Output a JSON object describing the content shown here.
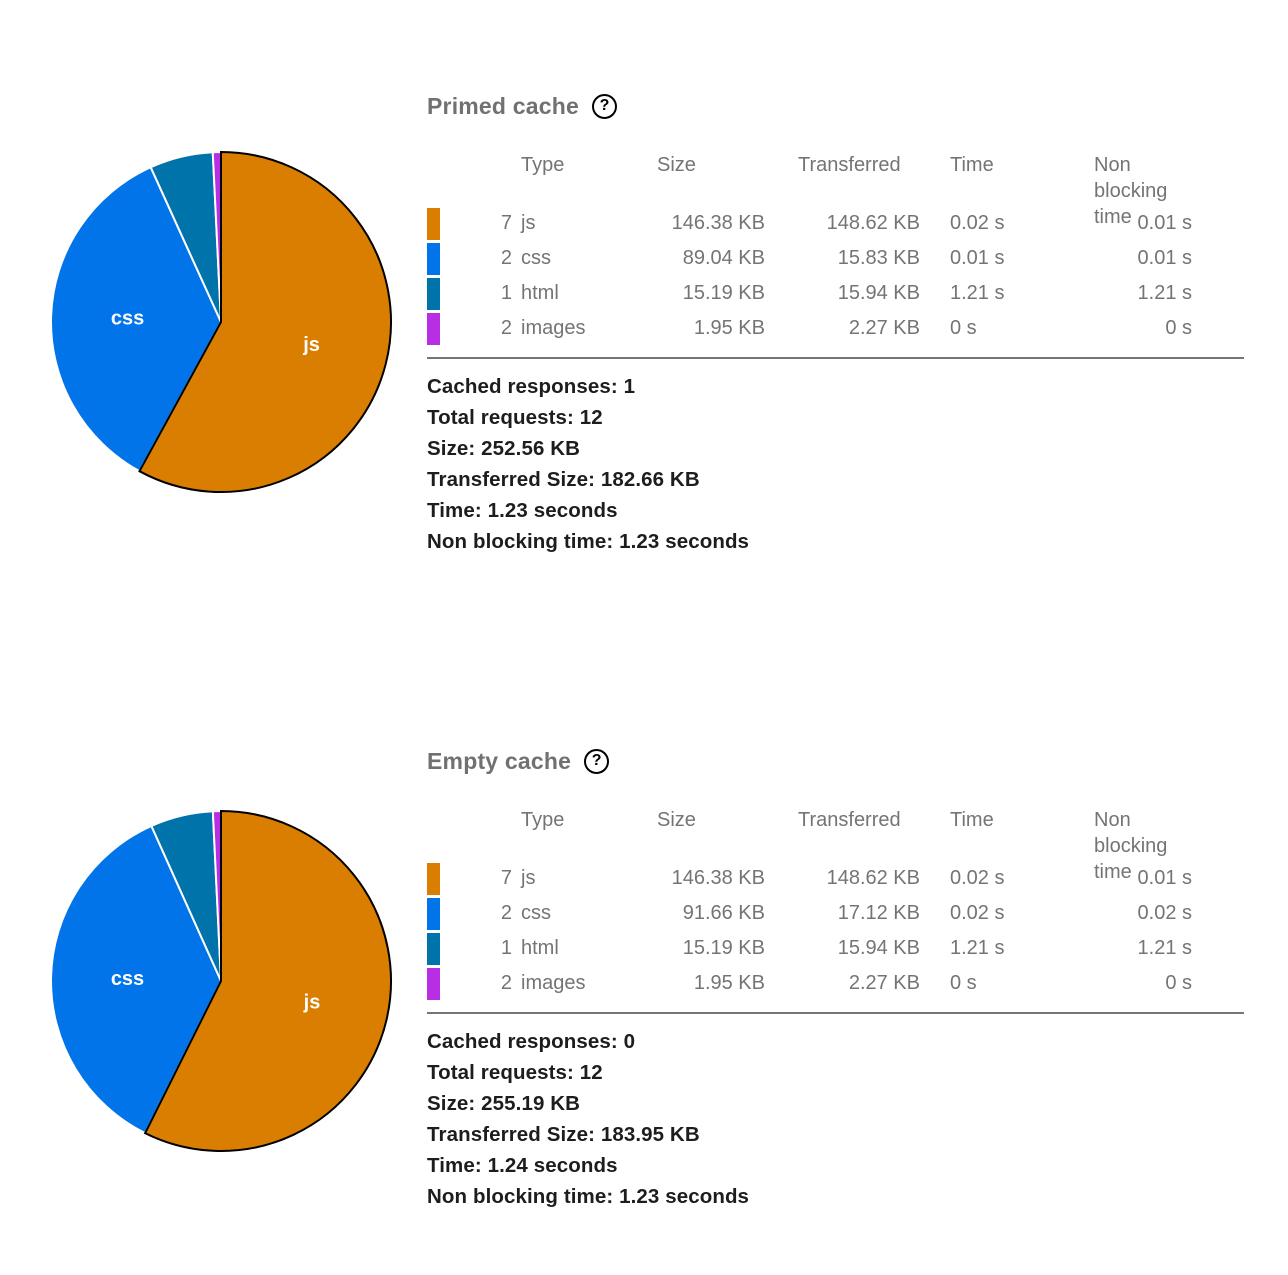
{
  "palette": {
    "js": "#d97e00",
    "css": "#0074e8",
    "html": "#0073ab",
    "images": "#b82ee5",
    "title_gray": "#717171",
    "table_gray": "#747474",
    "summary_dark": "#1d1d1f",
    "divider_gray": "#757575",
    "slice_label": "#ffffff",
    "js_slice_stroke": "#000000",
    "slice_separator": "#ffffff"
  },
  "sections": [
    {
      "title": "Primed cache",
      "help_icon": {
        "glyph": "?"
      },
      "table": {
        "headers": {
          "type": "Type",
          "size": "Size",
          "transferred": "Transferred",
          "time": "Time",
          "non_blocking_time": "Non blocking time"
        },
        "rows": [
          {
            "count": "7",
            "type": "js",
            "size": "146.38 KB",
            "transferred": "148.62 KB",
            "time": "0.02 s",
            "non_blocking_time": "0.01 s",
            "color": "#d97e00"
          },
          {
            "count": "2",
            "type": "css",
            "size": "89.04 KB",
            "transferred": "15.83 KB",
            "time": "0.01 s",
            "non_blocking_time": "0.01 s",
            "color": "#0074e8"
          },
          {
            "count": "1",
            "type": "html",
            "size": "15.19 KB",
            "transferred": "15.94 KB",
            "time": "1.21 s",
            "non_blocking_time": "1.21 s",
            "color": "#0073ab"
          },
          {
            "count": "2",
            "type": "images",
            "size": "1.95 KB",
            "transferred": "2.27 KB",
            "time": "0 s",
            "non_blocking_time": "0 s",
            "color": "#b82ee5"
          }
        ]
      },
      "summary": [
        "Cached responses: 1",
        "Total requests: 12",
        "Size: 252.56 KB",
        "Transferred Size: 182.66 KB",
        "Time: 1.23 seconds",
        "Non blocking time: 1.23 seconds"
      ]
    },
    {
      "title": "Empty cache",
      "help_icon": {
        "glyph": "?"
      },
      "table": {
        "headers": {
          "type": "Type",
          "size": "Size",
          "transferred": "Transferred",
          "time": "Time",
          "non_blocking_time": "Non blocking time"
        },
        "rows": [
          {
            "count": "7",
            "type": "js",
            "size": "146.38 KB",
            "transferred": "148.62 KB",
            "time": "0.02 s",
            "non_blocking_time": "0.01 s",
            "color": "#d97e00"
          },
          {
            "count": "2",
            "type": "css",
            "size": "91.66 KB",
            "transferred": "17.12 KB",
            "time": "0.02 s",
            "non_blocking_time": "0.02 s",
            "color": "#0074e8"
          },
          {
            "count": "1",
            "type": "html",
            "size": "15.19 KB",
            "transferred": "15.94 KB",
            "time": "1.21 s",
            "non_blocking_time": "1.21 s",
            "color": "#0073ab"
          },
          {
            "count": "2",
            "type": "images",
            "size": "1.95 KB",
            "transferred": "2.27 KB",
            "time": "0 s",
            "non_blocking_time": "0 s",
            "color": "#b82ee5"
          }
        ]
      },
      "summary": [
        "Cached responses: 0",
        "Total requests: 12",
        "Size: 255.19 KB",
        "Transferred Size: 183.95 KB",
        "Time: 1.24 seconds",
        "Non blocking time: 1.23 seconds"
      ]
    }
  ],
  "chart_data": [
    {
      "type": "pie",
      "title": "Primed cache",
      "categories": [
        "js",
        "css",
        "html",
        "images"
      ],
      "values": [
        146.38,
        89.04,
        15.19,
        1.95
      ],
      "unit": "KB",
      "total": 252.56,
      "colors": [
        "#d97e00",
        "#0074e8",
        "#0073ab",
        "#b82ee5"
      ],
      "slice_labels": [
        "js",
        "css"
      ],
      "start_angle_deg": 0,
      "direction": "clockwise",
      "legend_position": "table-right"
    },
    {
      "type": "pie",
      "title": "Empty cache",
      "categories": [
        "js",
        "css",
        "html",
        "images"
      ],
      "values": [
        146.38,
        91.66,
        15.19,
        1.95
      ],
      "unit": "KB",
      "total": 255.19,
      "colors": [
        "#d97e00",
        "#0074e8",
        "#0073ab",
        "#b82ee5"
      ],
      "slice_labels": [
        "js",
        "css"
      ],
      "start_angle_deg": 0,
      "direction": "clockwise",
      "legend_position": "table-right"
    }
  ]
}
